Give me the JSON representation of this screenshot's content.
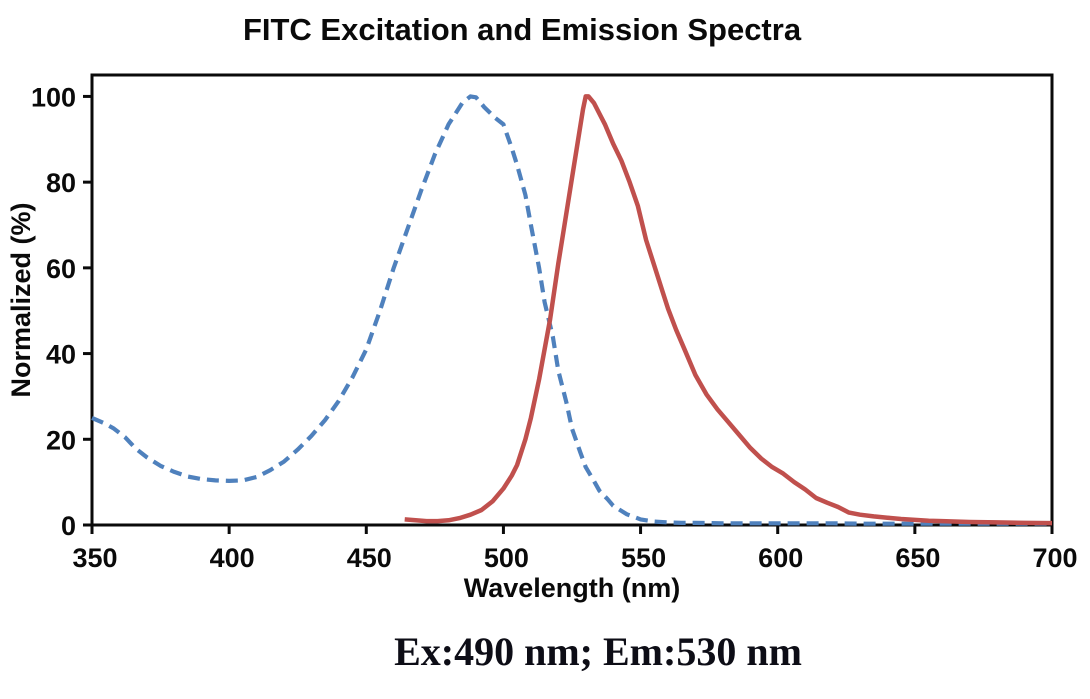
{
  "title": "FITC Excitation and Emission Spectra",
  "annotation": {
    "text": "Ex:490 nm; Em:530 nm"
  },
  "chart_data": {
    "type": "line",
    "title": "FITC Excitation and Emission Spectra",
    "xlabel": "Wavelength (nm)",
    "ylabel": "Normalized (%)",
    "xlim": [
      350,
      700
    ],
    "ylim": [
      0,
      105
    ],
    "x_ticks": [
      350,
      400,
      450,
      500,
      550,
      600,
      650,
      700
    ],
    "y_ticks": [
      0,
      20,
      40,
      60,
      80,
      100
    ],
    "grid": false,
    "legend_position": "none",
    "plot_border": true,
    "axis_color": "#0a0a0a",
    "series": [
      {
        "name": "Excitation",
        "peak_nm": 490,
        "color": "#4f81bd",
        "style": "dashed",
        "line_width": 4.2,
        "points": [
          [
            350,
            25
          ],
          [
            355,
            23.6
          ],
          [
            358,
            22.5
          ],
          [
            362,
            20.5
          ],
          [
            366,
            17.8
          ],
          [
            370,
            15.8
          ],
          [
            375,
            13.8
          ],
          [
            380,
            12.4
          ],
          [
            385,
            11.3
          ],
          [
            390,
            10.7
          ],
          [
            395,
            10.4
          ],
          [
            400,
            10.3
          ],
          [
            405,
            10.4
          ],
          [
            410,
            11.2
          ],
          [
            415,
            12.8
          ],
          [
            420,
            14.8
          ],
          [
            425,
            17.6
          ],
          [
            430,
            20.8
          ],
          [
            435,
            24.5
          ],
          [
            440,
            29
          ],
          [
            445,
            34.5
          ],
          [
            450,
            41
          ],
          [
            455,
            50
          ],
          [
            460,
            60
          ],
          [
            465,
            69
          ],
          [
            470,
            78
          ],
          [
            475,
            86.5
          ],
          [
            480,
            93.5
          ],
          [
            485,
            98.5
          ],
          [
            488,
            100
          ],
          [
            490,
            99.8
          ],
          [
            493,
            97.5
          ],
          [
            497,
            95
          ],
          [
            500,
            93.5
          ],
          [
            503,
            88
          ],
          [
            505,
            84
          ],
          [
            508,
            77
          ],
          [
            510,
            70
          ],
          [
            513,
            60
          ],
          [
            515,
            52
          ],
          [
            518,
            44
          ],
          [
            520,
            36
          ],
          [
            523,
            28.5
          ],
          [
            525,
            22.5
          ],
          [
            528,
            17
          ],
          [
            530,
            13.5
          ],
          [
            533,
            10.3
          ],
          [
            535,
            8
          ],
          [
            538,
            6
          ],
          [
            540,
            4.5
          ],
          [
            543,
            3.3
          ],
          [
            545,
            2.5
          ],
          [
            548,
            1.8
          ],
          [
            550,
            1.3
          ],
          [
            553,
            1
          ],
          [
            555,
            0.8
          ],
          [
            560,
            0.6
          ],
          [
            565,
            0.5
          ],
          [
            570,
            0.5
          ],
          [
            580,
            0.4
          ],
          [
            590,
            0.4
          ],
          [
            600,
            0.4
          ],
          [
            610,
            0.4
          ],
          [
            620,
            0.4
          ],
          [
            630,
            0.3
          ],
          [
            640,
            0.3
          ],
          [
            650,
            0.3
          ],
          [
            660,
            0.3
          ],
          [
            670,
            0.3
          ],
          [
            680,
            0.3
          ],
          [
            690,
            0.3
          ],
          [
            700,
            0.3
          ]
        ]
      },
      {
        "name": "Emission",
        "peak_nm": 530,
        "color": "#c0504d",
        "style": "solid",
        "line_width": 4.5,
        "points": [
          [
            464,
            1.3
          ],
          [
            468,
            1.1
          ],
          [
            472,
            0.9
          ],
          [
            476,
            0.9
          ],
          [
            480,
            1.1
          ],
          [
            484,
            1.6
          ],
          [
            488,
            2.4
          ],
          [
            492,
            3.5
          ],
          [
            496,
            5.5
          ],
          [
            500,
            8.5
          ],
          [
            503,
            11.5
          ],
          [
            505,
            14
          ],
          [
            508,
            20
          ],
          [
            510,
            25
          ],
          [
            513,
            34
          ],
          [
            515,
            41
          ],
          [
            517,
            48
          ],
          [
            520,
            61
          ],
          [
            522,
            69
          ],
          [
            525,
            81
          ],
          [
            527,
            89
          ],
          [
            529,
            97
          ],
          [
            530,
            100
          ],
          [
            531,
            100
          ],
          [
            533,
            98.5
          ],
          [
            535,
            96
          ],
          [
            537,
            93.5
          ],
          [
            540,
            89
          ],
          [
            543,
            85
          ],
          [
            546,
            80
          ],
          [
            549,
            74.5
          ],
          [
            552,
            66.5
          ],
          [
            555,
            60.5
          ],
          [
            558,
            54.5
          ],
          [
            560,
            50.5
          ],
          [
            563,
            45.5
          ],
          [
            566,
            41
          ],
          [
            570,
            35
          ],
          [
            574,
            30.5
          ],
          [
            578,
            27
          ],
          [
            582,
            24
          ],
          [
            586,
            21
          ],
          [
            590,
            18
          ],
          [
            594,
            15.5
          ],
          [
            598,
            13.5
          ],
          [
            602,
            12
          ],
          [
            606,
            10
          ],
          [
            610,
            8.3
          ],
          [
            614,
            6.3
          ],
          [
            618,
            5.2
          ],
          [
            622,
            4.2
          ],
          [
            626,
            2.9
          ],
          [
            630,
            2.4
          ],
          [
            635,
            2
          ],
          [
            640,
            1.7
          ],
          [
            645,
            1.4
          ],
          [
            650,
            1.2
          ],
          [
            655,
            1
          ],
          [
            660,
            0.9
          ],
          [
            670,
            0.7
          ],
          [
            680,
            0.6
          ],
          [
            690,
            0.5
          ],
          [
            700,
            0.45
          ]
        ]
      }
    ]
  }
}
